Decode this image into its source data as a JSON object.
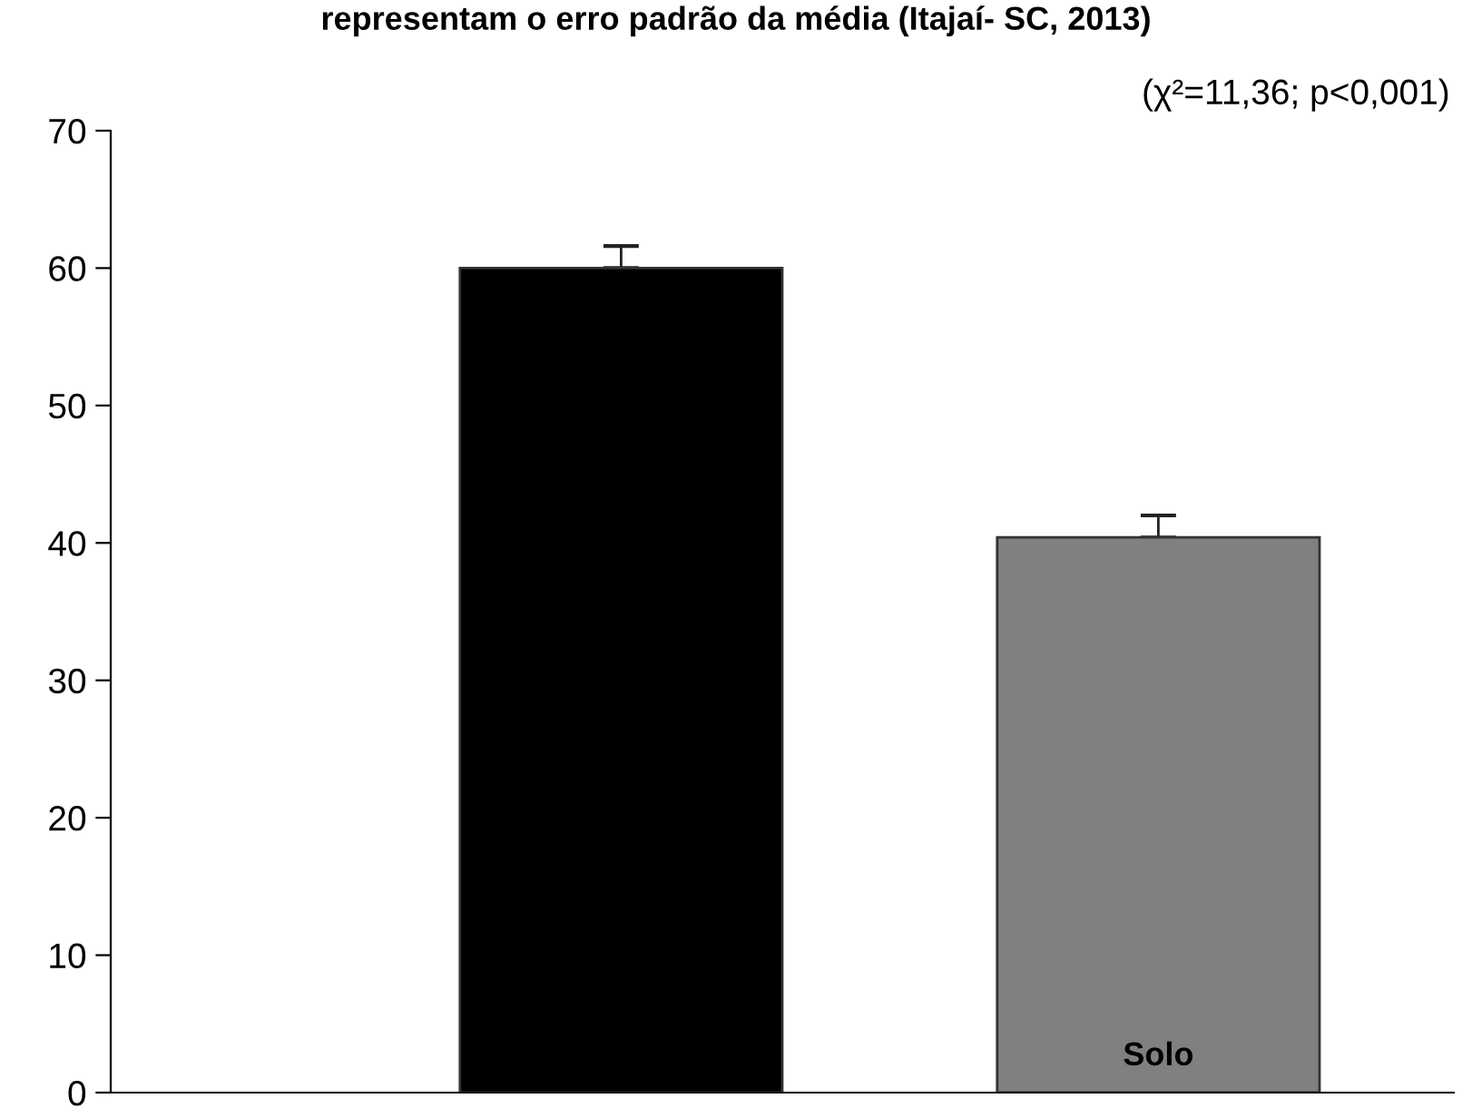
{
  "chart_data": {
    "type": "bar",
    "title": "representam o erro padrão da média (Itajaí- SC, 2013)",
    "annotations": [
      "(χ²=11,36; p<0,001)"
    ],
    "categories": [
      null,
      "Solo"
    ],
    "values": [
      60.0,
      40.4
    ],
    "errors": [
      [
        60.0,
        61.6
      ],
      [
        40.4,
        42.0
      ]
    ],
    "colors": [
      "#000000",
      "#808080"
    ],
    "ylim": [
      0,
      70
    ],
    "yticks": [
      0,
      10,
      20,
      30,
      40,
      50,
      60,
      70
    ],
    "grid": false,
    "legend": false
  }
}
